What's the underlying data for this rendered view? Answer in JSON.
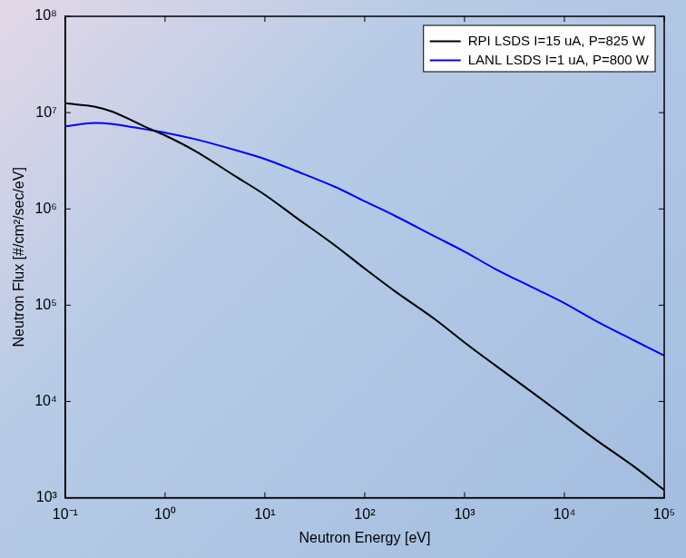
{
  "chart_data": {
    "type": "line",
    "x_label": "Neutron Energy [eV]",
    "y_label": "Neutron Flux [#/cm²/sec/eV]",
    "log": true,
    "grid": false,
    "legend": "upper right",
    "x": [
      0.1,
      0.2,
      0.3,
      0.5,
      0.7,
      1,
      2,
      5,
      10,
      20,
      50,
      100,
      200,
      500,
      1000,
      2000,
      5000,
      10000,
      20000,
      50000,
      100000
    ],
    "series": [
      {
        "name": "RPI LSDS I=15 uA, P=825 W",
        "color": "#000000",
        "values": [
          12500000,
          11500000,
          10200000,
          8000000,
          6800000,
          5800000,
          4000000,
          2200000,
          1400000,
          830000,
          420000,
          240000,
          140000,
          72000,
          41000,
          24000,
          12000,
          7000,
          4100,
          2100,
          1200
        ]
      },
      {
        "name": "LANL LSDS I=1 uA, P=800 W",
        "color": "#0000ff",
        "values": [
          7200000,
          7800000,
          7600000,
          7000000,
          6600000,
          6200000,
          5300000,
          4100000,
          3300000,
          2500000,
          1700000,
          1200000,
          850000,
          520000,
          360000,
          240000,
          150000,
          105000,
          70000,
          43000,
          30000
        ]
      }
    ],
    "xlim": [
      0.1,
      100000
    ],
    "xticks": [
      {
        "value": 0.1,
        "label": "10⁻¹"
      },
      {
        "value": 1,
        "label": "10⁰"
      },
      {
        "value": 10,
        "label": "10¹"
      },
      {
        "value": 100,
        "label": "10²"
      },
      {
        "value": 1000,
        "label": "10³"
      },
      {
        "value": 10000,
        "label": "10⁴"
      },
      {
        "value": 100000,
        "label": "10⁵"
      }
    ],
    "ylim": [
      1000,
      100000000
    ],
    "yticks": [
      {
        "value": 1000,
        "label": "10³"
      },
      {
        "value": 10000,
        "label": "10⁴"
      },
      {
        "value": 100000,
        "label": "10⁵"
      },
      {
        "value": 1000000,
        "label": "10⁶"
      },
      {
        "value": 10000000,
        "label": "10⁷"
      },
      {
        "value": 100000000,
        "label": "10⁸"
      }
    ]
  }
}
